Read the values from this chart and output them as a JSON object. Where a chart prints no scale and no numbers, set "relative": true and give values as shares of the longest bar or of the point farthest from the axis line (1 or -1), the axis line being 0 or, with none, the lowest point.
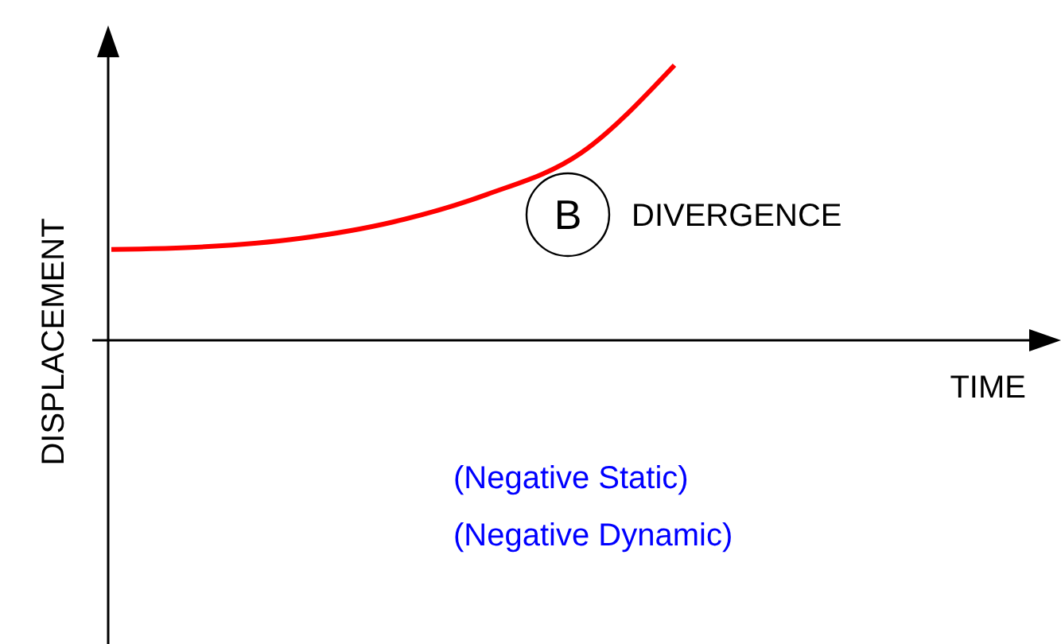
{
  "chart_data": {
    "type": "line",
    "relative": true,
    "xlabel": "TIME",
    "ylabel": "DISPLACEMENT",
    "categories": [
      null,
      null,
      null,
      null,
      null,
      null,
      null,
      null,
      null,
      null,
      null
    ],
    "series": [
      {
        "color": "#ff0000",
        "values": [
          0.33,
          0.34,
          0.37,
          0.43,
          0.53,
          0.68,
          1,
          null,
          null,
          null,
          null
        ]
      }
    ],
    "annotations": [
      "B",
      "DIVERGENCE",
      "(Negative Static)",
      "(Negative Dynamic)"
    ],
    "marker": "none",
    "line_style": "solid"
  }
}
